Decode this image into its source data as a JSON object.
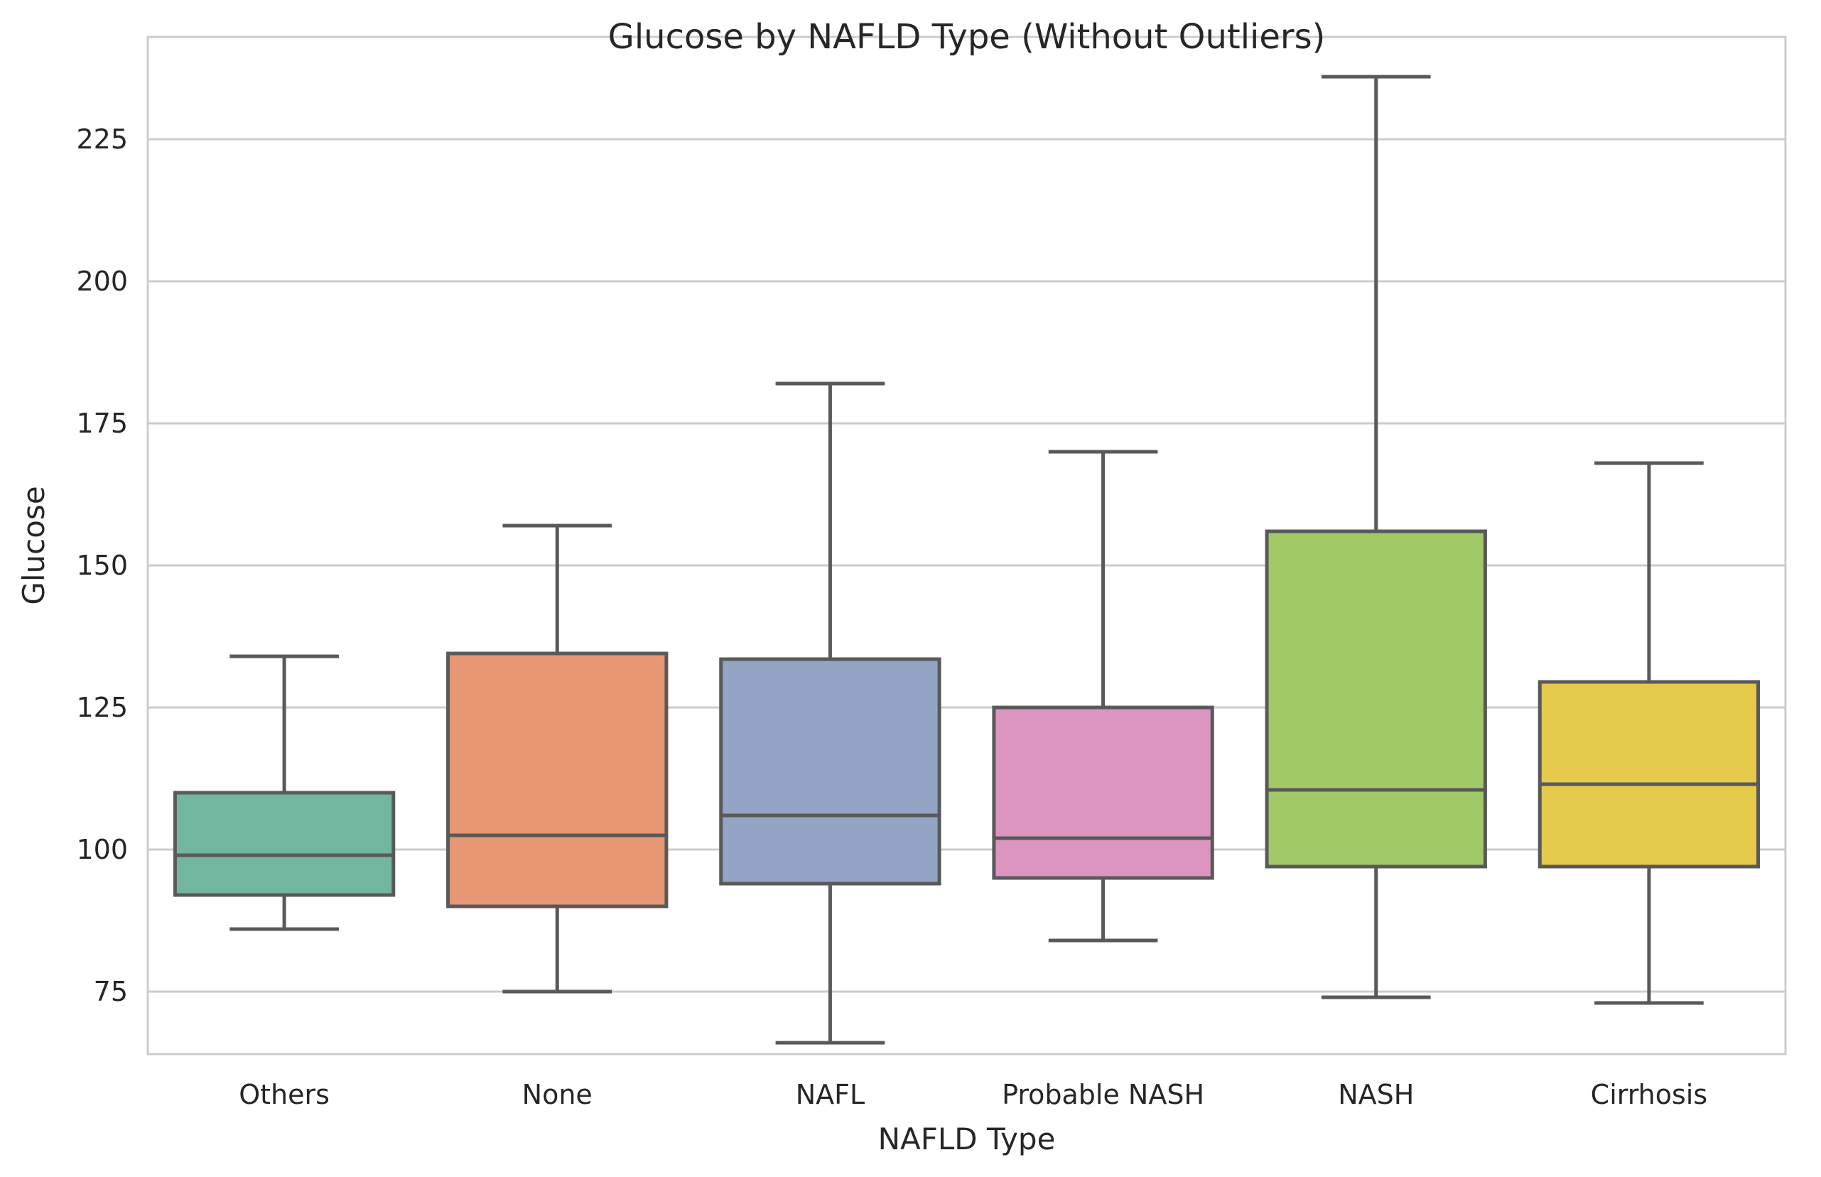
{
  "chart_data": {
    "type": "box",
    "title": "Glucose by NAFLD Type (Without Outliers)",
    "xlabel": "NAFLD Type",
    "ylabel": "Glucose",
    "ylim": [
      64,
      243
    ],
    "yticks": [
      75,
      100,
      125,
      150,
      175,
      200,
      225
    ],
    "grid": "horizontal",
    "categories": [
      "Others",
      "None",
      "NAFL",
      "Probable NASH",
      "NASH",
      "Cirrhosis"
    ],
    "boxes": [
      {
        "category": "Others",
        "whisker_low": 86,
        "q1": 92,
        "median": 99,
        "q3": 110,
        "whisker_high": 134,
        "color": "#72b69f"
      },
      {
        "category": "None",
        "whisker_low": 75,
        "q1": 90,
        "median": 102.5,
        "q3": 134.5,
        "whisker_high": 157,
        "color": "#e89774"
      },
      {
        "category": "NAFL",
        "whisker_low": 66,
        "q1": 94,
        "median": 106,
        "q3": 133.5,
        "whisker_high": 182,
        "color": "#94a4c4"
      },
      {
        "category": "Probable NASH",
        "whisker_low": 84,
        "q1": 95,
        "median": 102,
        "q3": 125,
        "whisker_high": 170,
        "color": "#db95bf"
      },
      {
        "category": "NASH",
        "whisker_low": 74,
        "q1": 97,
        "median": 110.5,
        "q3": 156,
        "whisker_high": 236,
        "color": "#a1c866"
      },
      {
        "category": "Cirrhosis",
        "whisker_low": 73,
        "q1": 97,
        "median": 111.5,
        "q3": 129.5,
        "whisker_high": 168,
        "color": "#e5c94a"
      }
    ],
    "line_color": "#595959"
  }
}
